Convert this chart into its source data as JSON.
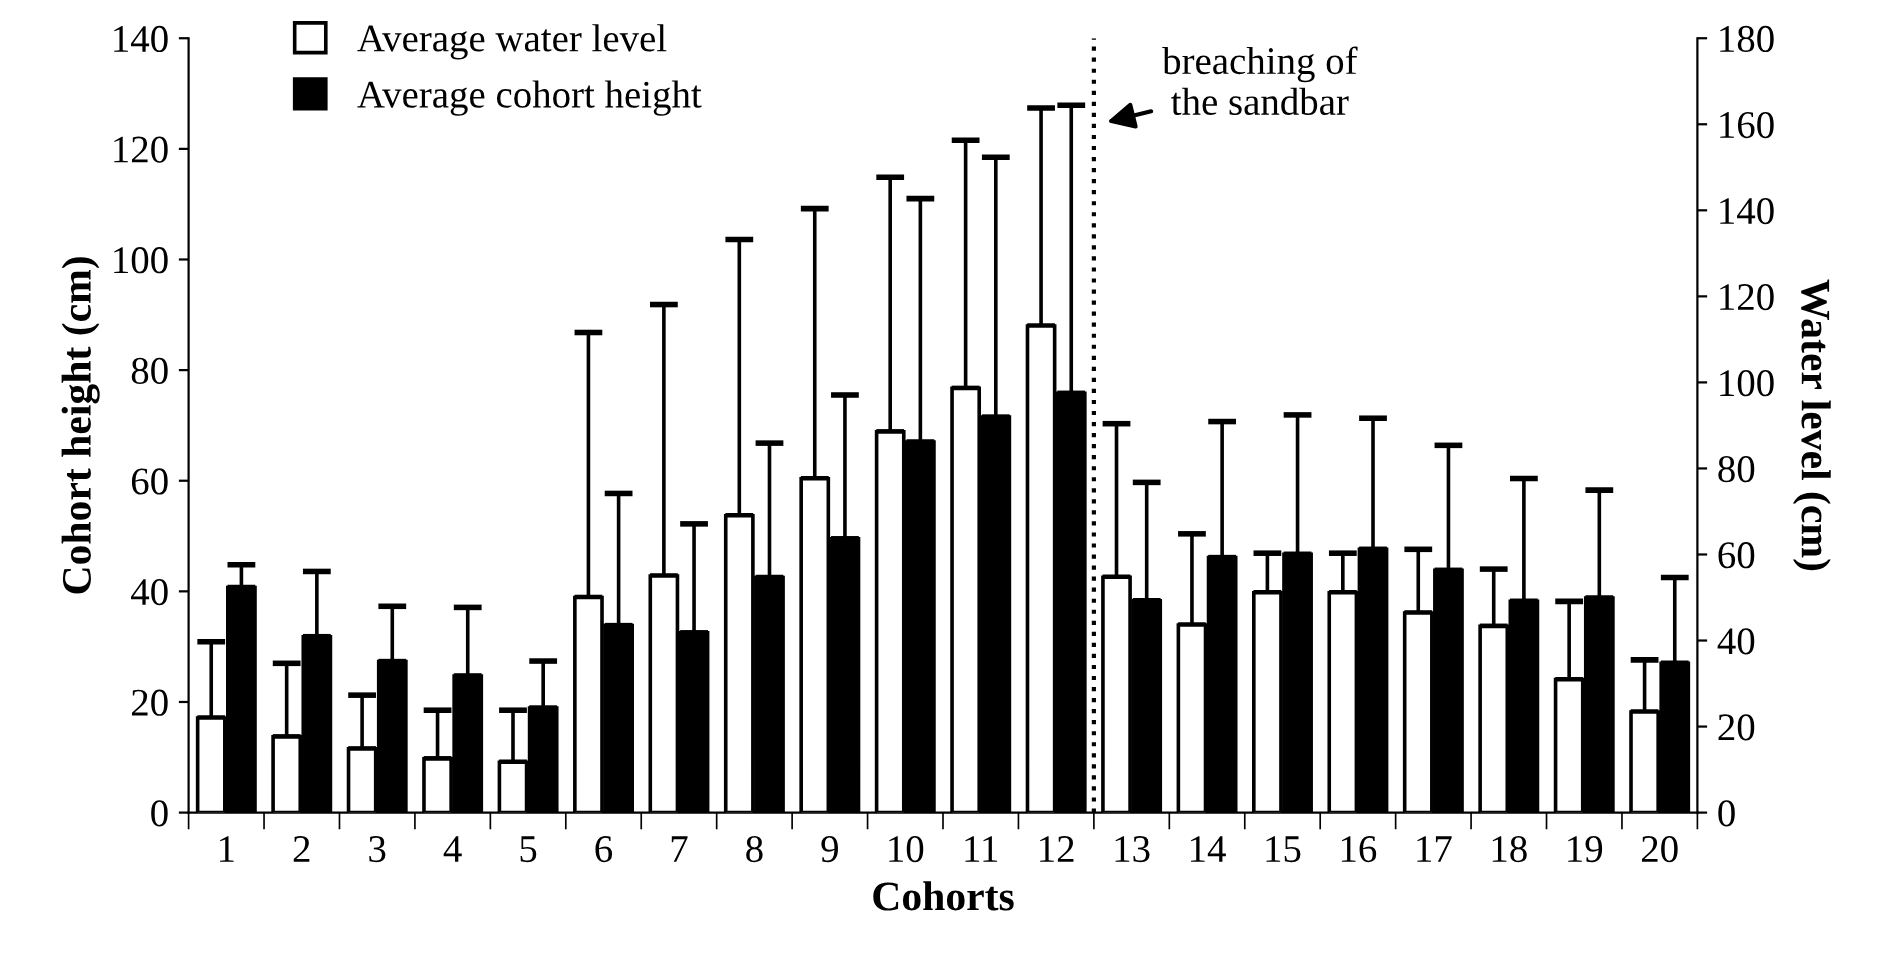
{
  "chart_data": {
    "type": "bar",
    "xlabel": "Cohorts",
    "ylabel": "Cohort height (cm)",
    "y2label": "Water level (cm)",
    "categories": [
      "1",
      "2",
      "3",
      "4",
      "5",
      "6",
      "7",
      "8",
      "9",
      "10",
      "11",
      "12",
      "13",
      "14",
      "15",
      "16",
      "17",
      "18",
      "19",
      "20"
    ],
    "series": [
      {
        "name": "Average water level",
        "color": "#ffffff",
        "axis": "y2",
        "values": [
          22.0,
          17.6,
          14.8,
          12.5,
          11.7,
          50.0,
          55.0,
          69.0,
          77.6,
          88.5,
          98.6,
          113.1,
          54.7,
          43.6,
          51.1,
          51.1,
          46.4,
          43.3,
          30.9,
          23.4
        ],
        "errors": [
          [
            22.0,
            39.7
          ],
          [
            17.6,
            34.7
          ],
          [
            14.8,
            27.3
          ],
          [
            12.5,
            23.8
          ],
          [
            11.7,
            23.8
          ],
          [
            50.0,
            111.6
          ],
          [
            55.0,
            118.1
          ],
          [
            69.0,
            133.2
          ],
          [
            77.6,
            140.4
          ],
          [
            88.5,
            147.7
          ],
          [
            98.6,
            156.3
          ],
          [
            113.1,
            163.8
          ],
          [
            54.7,
            90.4
          ],
          [
            43.6,
            64.8
          ],
          [
            51.1,
            60.3
          ],
          [
            51.1,
            60.3
          ],
          [
            46.4,
            61.2
          ],
          [
            43.3,
            56.6
          ],
          [
            30.9,
            49.1
          ],
          [
            23.4,
            35.5
          ]
        ]
      },
      {
        "name": "Average cohort height",
        "color": "#000000",
        "values": [
          40.7,
          31.8,
          27.3,
          24.7,
          18.9,
          33.8,
          32.5,
          42.5,
          49.5,
          67.0,
          71.5,
          75.8,
          38.3,
          46.1,
          46.7,
          47.6,
          43.8,
          38.2,
          38.8,
          27.0
        ],
        "errors": [
          [
            40.7,
            44.8
          ],
          [
            31.8,
            43.6
          ],
          [
            27.3,
            37.3
          ],
          [
            24.7,
            37.1
          ],
          [
            18.9,
            27.4
          ],
          [
            33.8,
            57.7
          ],
          [
            32.5,
            52.2
          ],
          [
            42.5,
            66.8
          ],
          [
            49.5,
            75.5
          ],
          [
            67.0,
            111.0
          ],
          [
            71.5,
            118.5
          ],
          [
            75.8,
            127.9
          ],
          [
            38.3,
            59.7
          ],
          [
            46.1,
            70.7
          ],
          [
            46.7,
            71.9
          ],
          [
            47.6,
            71.3
          ],
          [
            43.8,
            66.4
          ],
          [
            38.2,
            60.4
          ],
          [
            38.8,
            58.3
          ],
          [
            27.0,
            42.5
          ]
        ]
      }
    ],
    "ylim": [
      0,
      140
    ],
    "yticks": [
      0,
      20,
      40,
      60,
      80,
      100,
      120,
      140
    ],
    "y2lim": [
      0,
      180
    ],
    "y2ticks": [
      0,
      20,
      40,
      60,
      80,
      100,
      120,
      140,
      160,
      180
    ],
    "annotations": [
      "breaching of\nthe sandbar"
    ],
    "legend": "top left",
    "grid": false
  }
}
